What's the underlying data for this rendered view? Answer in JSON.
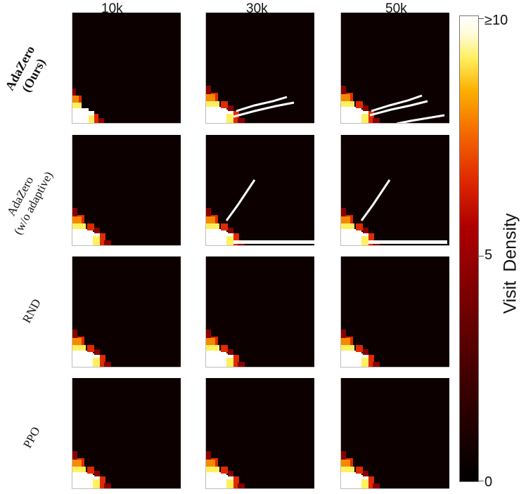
{
  "chart_data": {
    "type": "heatmap",
    "columns": [
      "10k",
      "30k",
      "50k"
    ],
    "rows": [
      {
        "label_lines": [
          "AdaZero",
          "(Ours)"
        ],
        "bold": true
      },
      {
        "label_lines": [
          "AdaZero",
          "(w/o adaptive)"
        ],
        "bold": false
      },
      {
        "label_lines": [
          "RND"
        ],
        "bold": false
      },
      {
        "label_lines": [
          "PPO"
        ],
        "bold": false
      }
    ],
    "colorbar": {
      "title": "Visit  Density",
      "ticks": [
        "0",
        "5",
        "≥10"
      ],
      "range": [
        0,
        10
      ],
      "colormap": "hot"
    }
  },
  "colors": {
    "background": "#0c0000",
    "hot_1": "#ffffff",
    "hot_2": "#fff060",
    "hot_3": "#f58a00",
    "hot_4": "#e02a00",
    "hot_5": "#8a0000"
  }
}
